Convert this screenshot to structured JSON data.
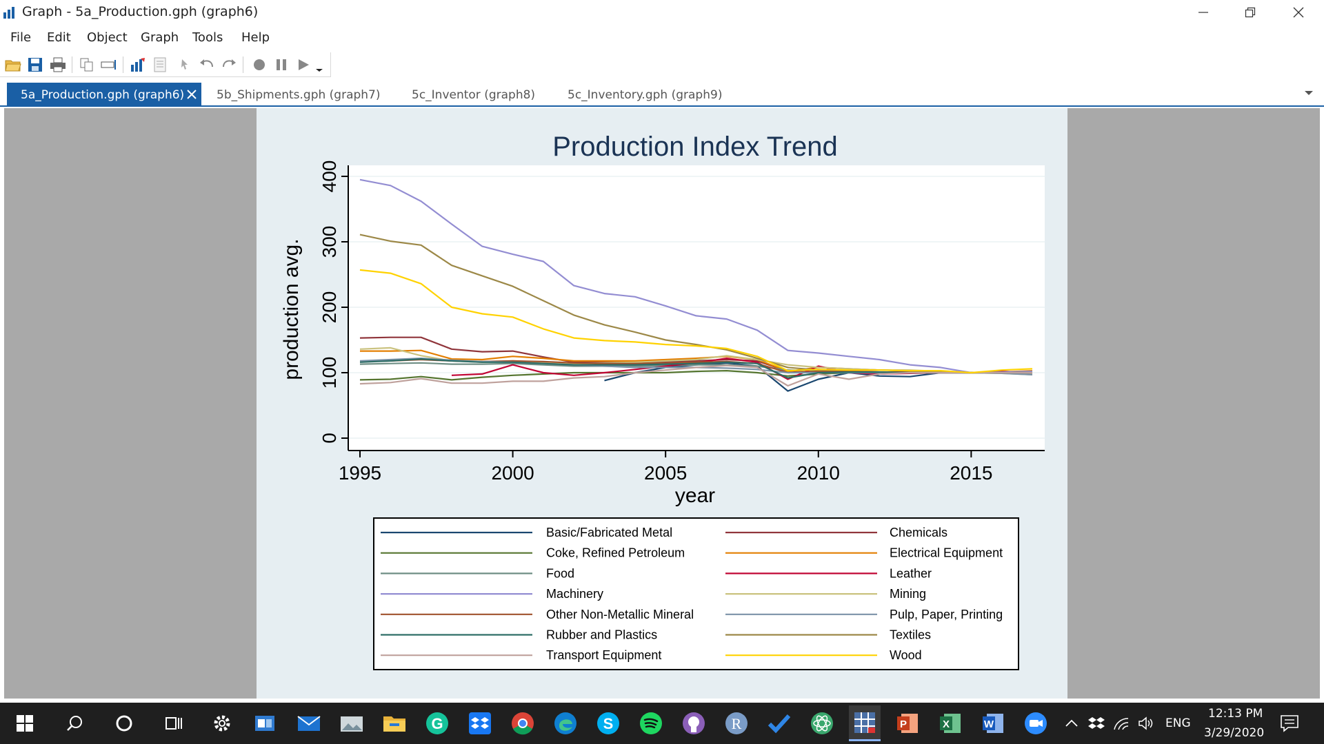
{
  "window": {
    "title": "Graph - 5a_Production.gph (graph6)"
  },
  "menu": [
    "File",
    "Edit",
    "Object",
    "Graph",
    "Tools",
    "Help"
  ],
  "toolbar_icons": [
    "open-folder-icon",
    "save-icon",
    "print-icon",
    "copy-icon",
    "rename-icon",
    "graph-editor-icon",
    "properties-icon",
    "pointer-icon",
    "undo-icon",
    "redo-icon",
    "record-icon",
    "pause-icon",
    "play-icon"
  ],
  "tabs": [
    {
      "label": "5a_Production.gph (graph6)",
      "active": true
    },
    {
      "label": "5b_Shipments.gph (graph7)",
      "active": false
    },
    {
      "label": "5c_Inventor (graph8)",
      "active": false
    },
    {
      "label": "5c_Inventory.gph (graph9)",
      "active": false
    }
  ],
  "colors": {
    "accent": "#1a5fa5",
    "plot_bg": "#ffffff",
    "graph_bg": "#e6eef2",
    "title": "#1a3354"
  },
  "chart_data": {
    "type": "line",
    "title": "Production Index Trend",
    "xlabel": "year",
    "ylabel": "production avg.",
    "xlim": [
      1995,
      2017
    ],
    "ylim": [
      0,
      400
    ],
    "xticks": [
      1995,
      2000,
      2005,
      2010,
      2015
    ],
    "yticks": [
      0,
      100,
      200,
      300,
      400
    ],
    "grid": true,
    "legend_position": "bottom",
    "series": [
      {
        "name": "Basic/Fabricated Metal",
        "color": "#1a476f",
        "x": [
          2003,
          2004,
          2005,
          2006,
          2007,
          2008,
          2009,
          2010,
          2011,
          2012,
          2013,
          2014,
          2015,
          2016,
          2017
        ],
        "values": [
          88,
          100,
          108,
          112,
          115,
          110,
          72,
          90,
          100,
          95,
          94,
          100,
          100,
          100,
          100
        ]
      },
      {
        "name": "Chemicals",
        "color": "#90353b",
        "x": [
          1995,
          1996,
          1997,
          1998,
          1999,
          2000,
          2001,
          2002,
          2003,
          2004,
          2005,
          2006,
          2007,
          2008,
          2009,
          2010,
          2011,
          2012,
          2013,
          2014,
          2015,
          2016,
          2017
        ],
        "values": [
          153,
          154,
          154,
          136,
          132,
          133,
          124,
          116,
          117,
          116,
          117,
          118,
          120,
          118,
          102,
          105,
          102,
          101,
          101,
          101,
          100,
          101,
          102
        ]
      },
      {
        "name": "Coke, Refined Petroleum",
        "color": "#55752f",
        "x": [
          1995,
          1996,
          1997,
          1998,
          1999,
          2000,
          2001,
          2002,
          2003,
          2004,
          2005,
          2006,
          2007,
          2008,
          2009,
          2010,
          2011,
          2012,
          2013,
          2014,
          2015,
          2016,
          2017
        ],
        "values": [
          89,
          90,
          94,
          89,
          93,
          96,
          98,
          100,
          100,
          100,
          100,
          102,
          103,
          100,
          95,
          98,
          100,
          100,
          100,
          100,
          100,
          100,
          100
        ]
      },
      {
        "name": "Electrical Equipment",
        "color": "#e37e00",
        "x": [
          1995,
          1996,
          1997,
          1998,
          1999,
          2000,
          2001,
          2002,
          2003,
          2004,
          2005,
          2006,
          2007,
          2008,
          2009,
          2010,
          2011,
          2012,
          2013,
          2014,
          2015,
          2016,
          2017
        ],
        "values": [
          133,
          133,
          134,
          121,
          120,
          125,
          122,
          118,
          118,
          118,
          120,
          122,
          125,
          120,
          102,
          108,
          106,
          104,
          103,
          102,
          100,
          101,
          103
        ]
      },
      {
        "name": "Food",
        "color": "#6e8e84",
        "x": [
          1995,
          1996,
          1997,
          1998,
          1999,
          2000,
          2001,
          2002,
          2003,
          2004,
          2005,
          2006,
          2007,
          2008,
          2009,
          2010,
          2011,
          2012,
          2013,
          2014,
          2015,
          2016,
          2017
        ],
        "values": [
          113,
          114,
          115,
          113,
          113,
          114,
          112,
          110,
          110,
          110,
          111,
          112,
          112,
          110,
          104,
          103,
          101,
          101,
          100,
          100,
          100,
          100,
          100
        ]
      },
      {
        "name": "Leather",
        "color": "#c10534",
        "x": [
          1998,
          1999,
          2000,
          2001,
          2002,
          2003,
          2004,
          2005,
          2006,
          2007,
          2008,
          2009,
          2010,
          2011,
          2012,
          2013,
          2014,
          2015,
          2016,
          2017
        ],
        "values": [
          96,
          98,
          112,
          100,
          96,
          100,
          105,
          110,
          115,
          122,
          116,
          90,
          110,
          100,
          98,
          99,
          100,
          100,
          102,
          100
        ]
      },
      {
        "name": "Machinery",
        "color": "#938dd2",
        "x": [
          1995,
          1996,
          1997,
          1998,
          1999,
          2000,
          2001,
          2002,
          2003,
          2004,
          2005,
          2006,
          2007,
          2008,
          2009,
          2010,
          2011,
          2012,
          2013,
          2014,
          2015,
          2016,
          2017
        ],
        "values": [
          395,
          386,
          362,
          327,
          293,
          281,
          270,
          233,
          221,
          216,
          202,
          187,
          182,
          165,
          134,
          130,
          125,
          120,
          112,
          108,
          100,
          101,
          102
        ]
      },
      {
        "name": "Mining",
        "color": "#cac27e",
        "x": [
          1995,
          1996,
          1997,
          1998,
          1999,
          2000,
          2001,
          2002,
          2003,
          2004,
          2005,
          2006,
          2007,
          2008,
          2009,
          2010,
          2011,
          2012,
          2013,
          2014,
          2015,
          2016,
          2017
        ],
        "values": [
          136,
          138,
          126,
          118,
          116,
          118,
          116,
          114,
          115,
          116,
          118,
          120,
          126,
          120,
          112,
          108,
          106,
          104,
          104,
          102,
          100,
          99,
          97
        ]
      },
      {
        "name": "Other Non-Metallic Mineral",
        "color": "#a0522d",
        "x": [
          1995,
          1996,
          1997,
          1998,
          1999,
          2000,
          2001,
          2002,
          2003,
          2004,
          2005,
          2006,
          2007,
          2008,
          2009,
          2010,
          2011,
          2012,
          2013,
          2014,
          2015,
          2016,
          2017
        ],
        "values": [
          117,
          118,
          120,
          118,
          117,
          118,
          117,
          115,
          114,
          114,
          115,
          116,
          117,
          114,
          100,
          102,
          102,
          101,
          100,
          100,
          100,
          100,
          100
        ]
      },
      {
        "name": "Pulp, Paper, Printing",
        "color": "#7b92a8",
        "x": [
          1995,
          1996,
          1997,
          1998,
          1999,
          2000,
          2001,
          2002,
          2003,
          2004,
          2005,
          2006,
          2007,
          2008,
          2009,
          2010,
          2011,
          2012,
          2013,
          2014,
          2015,
          2016,
          2017
        ],
        "values": [
          118,
          120,
          122,
          119,
          117,
          116,
          114,
          112,
          110,
          108,
          108,
          108,
          107,
          105,
          100,
          100,
          100,
          100,
          100,
          100,
          100,
          99,
          97
        ]
      },
      {
        "name": "Rubber and Plastics",
        "color": "#2d6d66",
        "x": [
          1995,
          1996,
          1997,
          1998,
          1999,
          2000,
          2001,
          2002,
          2003,
          2004,
          2005,
          2006,
          2007,
          2008,
          2009,
          2010,
          2011,
          2012,
          2013,
          2014,
          2015,
          2016,
          2017
        ],
        "values": [
          116,
          118,
          121,
          118,
          116,
          116,
          114,
          112,
          112,
          112,
          113,
          114,
          116,
          114,
          92,
          100,
          101,
          101,
          100,
          100,
          100,
          100,
          100
        ]
      },
      {
        "name": "Textiles",
        "color": "#9c8847",
        "x": [
          1995,
          1996,
          1997,
          1998,
          1999,
          2000,
          2001,
          2002,
          2003,
          2004,
          2005,
          2006,
          2007,
          2008,
          2009,
          2010,
          2011,
          2012,
          2013,
          2014,
          2015,
          2016,
          2017
        ],
        "values": [
          311,
          301,
          295,
          264,
          248,
          232,
          210,
          188,
          173,
          162,
          150,
          143,
          135,
          122,
          108,
          104,
          104,
          104,
          103,
          102,
          100,
          100,
          100
        ]
      },
      {
        "name": "Transport Equipment",
        "color": "#bfa19c",
        "x": [
          1995,
          1996,
          1997,
          1998,
          1999,
          2000,
          2001,
          2002,
          2003,
          2004,
          2005,
          2006,
          2007,
          2008,
          2009,
          2010,
          2011,
          2012,
          2013,
          2014,
          2015,
          2016,
          2017
        ],
        "values": [
          83,
          85,
          91,
          84,
          84,
          87,
          87,
          92,
          94,
          100,
          104,
          108,
          111,
          108,
          80,
          98,
          90,
          98,
          100,
          100,
          100,
          100,
          100
        ]
      },
      {
        "name": "Wood",
        "color": "#ffd200",
        "x": [
          1995,
          1996,
          1997,
          1998,
          1999,
          2000,
          2001,
          2002,
          2003,
          2004,
          2005,
          2006,
          2007,
          2008,
          2009,
          2010,
          2011,
          2012,
          2013,
          2014,
          2015,
          2016,
          2017
        ],
        "values": [
          257,
          252,
          236,
          200,
          190,
          185,
          167,
          153,
          149,
          147,
          143,
          141,
          137,
          125,
          103,
          105,
          104,
          104,
          103,
          103,
          100,
          104,
          106
        ]
      }
    ]
  },
  "taskbar": {
    "icons": [
      "windows-start-icon",
      "search-icon",
      "cortana-icon",
      "task-view-icon",
      "settings-icon",
      "outlook-icon",
      "mail-icon",
      "photos-icon",
      "file-explorer-icon",
      "grammarly-icon",
      "dropbox-icon",
      "chrome-icon",
      "edge-icon",
      "skype-icon",
      "spotify-icon",
      "github-icon",
      "r-icon",
      "todo-icon",
      "atom-icon",
      "stata-icon",
      "powerpoint-icon",
      "excel-icon",
      "word-icon",
      "zoom-icon"
    ],
    "r_letter": "R",
    "language": "ENG",
    "time": "12:13 PM",
    "date": "3/29/2020"
  }
}
